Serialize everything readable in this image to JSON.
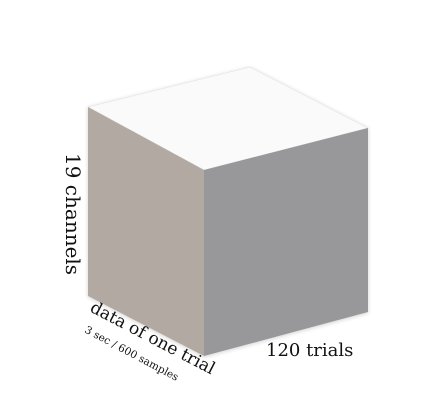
{
  "diagram": {
    "labels": {
      "channels": "19 channels",
      "data_of_one_trial": "data of one trial",
      "samples": "3 sec / 600 samples",
      "trials": "120 trials"
    },
    "colors": {
      "top_face": "#fafafa",
      "left_face": "#b2aaa2",
      "right_face": "#98979a",
      "text": "#111111"
    }
  }
}
